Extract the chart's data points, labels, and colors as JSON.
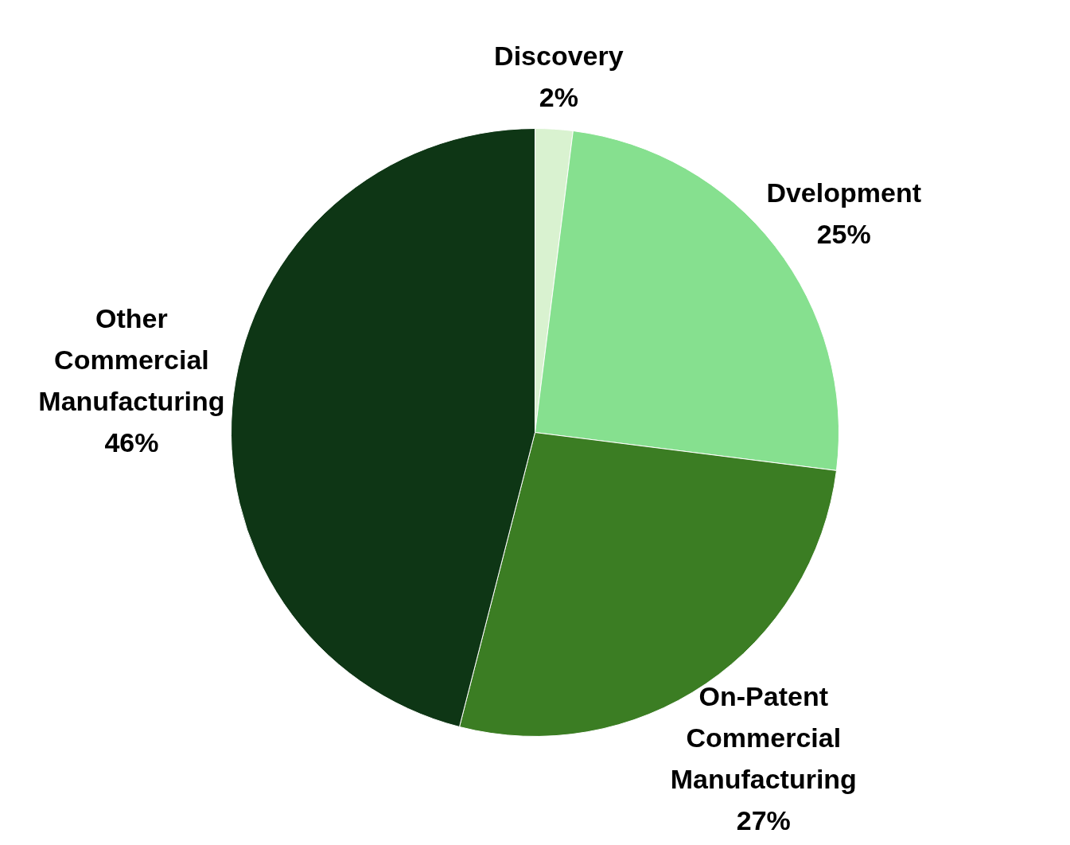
{
  "chart_data": {
    "type": "pie",
    "categories": [
      "Discovery",
      "Dvelopment",
      "On-Patent Commercial Manufacturing",
      "Other Commercial Manufacturing"
    ],
    "values": [
      2,
      25,
      27,
      46
    ],
    "colors": [
      "#d9f2d0",
      "#86e08f",
      "#3b7d23",
      "#0e3615"
    ],
    "value_labels": [
      "2%",
      "25%",
      "27%",
      "46%"
    ],
    "legend": false
  }
}
